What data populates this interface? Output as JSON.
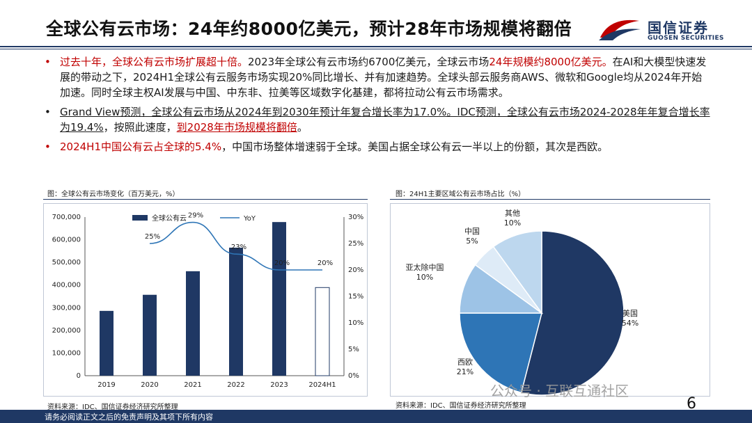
{
  "header": {
    "title": "全球公有云市场：24年约8000亿美元，预计28年市场规模将翻倍",
    "logo_cn": "国信证券",
    "logo_en": "GUOSEN SECURITIES"
  },
  "bullets": [
    {
      "red_lead": "过去十年，全球公有云市场扩展超十倍。",
      "text_a": "2023年全球公有云市场约6700亿美元，全球云市场",
      "red_mid": "24年规模约8000亿美元。",
      "text_b": "在AI和大模型快速发展的带动之下，2024H1全球公有云服务市场实现20%同比增长、并有加速趋势。全球头部云服务商AWS、微软和Google均从2024年开始加速。同时全球主权AI发展与中国、中东非、拉美等区域数字化基建，都将拉动公有云市场需求。"
    },
    {
      "text_a": "Grand View预测，全球公有云市场从2024年到2030年预计年复合增长率为17.0%。",
      "text_b": "IDC预测，全球公有云市场2024-2028年年复合增长率为19.4%",
      "text_c": "，按照此速度，",
      "red_tail": "到2028年市场规模将翻倍",
      "text_d": "。"
    },
    {
      "red_lead": "2024H1中国公有云占全球的5.4%",
      "text_a": "，中国市场整体增速弱于全球。美国占据全球公有云一半以上的份额，其次是西欧。"
    }
  ],
  "left_panel": {
    "title": "图：全球公有云市场变化（百万美元，%）",
    "source": "资料来源：IDC、国信证券经济研究所整理"
  },
  "right_panel": {
    "title": "图：24H1主要区域公有云市场占比（%）",
    "source": "资料来源：IDC、国信证券经济研究所整理"
  },
  "chart_data": [
    {
      "type": "bar",
      "title": "全球公有云市场变化（百万美元，%）",
      "categories": [
        "2019",
        "2020",
        "2021",
        "2022",
        "2023",
        "2024H1"
      ],
      "series": [
        {
          "name": "全球公有云",
          "kind": "bar",
          "axis": "left",
          "values": [
            286000,
            357000,
            461000,
            565000,
            678000,
            389000
          ]
        },
        {
          "name": "YoY",
          "kind": "line",
          "axis": "right",
          "values": [
            null,
            25,
            29,
            23,
            20,
            20
          ]
        }
      ],
      "yoy_labels": [
        "25%",
        "29%",
        "23%",
        "20%",
        "20%"
      ],
      "left_axis": {
        "range": [
          0,
          700000
        ],
        "ticks": [
          "0",
          "100,000",
          "200,000",
          "300,000",
          "400,000",
          "500,000",
          "600,000",
          "700,000"
        ]
      },
      "right_axis": {
        "range": [
          0,
          30
        ],
        "ticks": [
          "0%",
          "5%",
          "10%",
          "15%",
          "20%",
          "25%",
          "30%"
        ]
      },
      "colors": {
        "bar": "#1f3864",
        "line": "#2e75b6",
        "last_bar_fill": "#ffffff"
      }
    },
    {
      "type": "pie",
      "title": "24H1主要区域公有云市场占比（%）",
      "slices": [
        {
          "name": "美国",
          "value": 54,
          "label": "54%",
          "color": "#1f3864"
        },
        {
          "name": "西欧",
          "value": 21,
          "label": "21%",
          "color": "#2e75b6"
        },
        {
          "name": "亚太除中国",
          "value": 10,
          "label": "10%",
          "color": "#9dc3e6"
        },
        {
          "name": "中国",
          "value": 5,
          "label": "5%",
          "color": "#deebf7"
        },
        {
          "name": "其他",
          "value": 10,
          "label": "10%",
          "color": "#bdd7ee"
        }
      ]
    }
  ],
  "footer": {
    "disclaimer": "请务必阅读正文之后的免责声明及其项下所有内容",
    "page": "6",
    "watermark": "公众号 · 互联互通社区"
  }
}
